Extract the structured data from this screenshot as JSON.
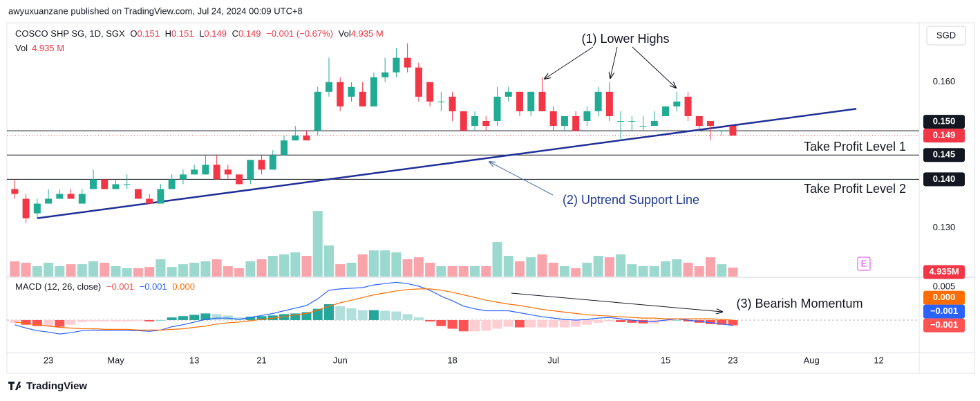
{
  "header": {
    "publisher": "awyuxuanzane published on TradingView.com, Jul 24, 2024 00:09 UTC+8",
    "symbol": "COSCO SHP SG, 1D, SGX",
    "ohlc": [
      {
        "key": "O",
        "value": "0.151"
      },
      {
        "key": "H",
        "value": "0.151"
      },
      {
        "key": "L",
        "value": "0.149"
      },
      {
        "key": "C",
        "value": "0.149"
      }
    ],
    "change": "−0.001 (−0.67%)",
    "vol_key": "Vol",
    "vol_value": "4.935 M",
    "currency": "SGD",
    "events_marker": "E"
  },
  "chart_data": [
    {
      "type": "candlestick",
      "open": [
        0.138,
        0.136,
        0.133,
        0.135,
        0.136,
        0.137,
        0.135,
        0.138,
        0.14,
        0.138,
        0.139,
        0.138,
        0.136,
        0.135,
        0.138,
        0.14,
        0.141,
        0.141,
        0.143,
        0.142,
        0.141,
        0.14,
        0.144,
        0.142,
        0.145,
        0.148,
        0.149,
        0.15,
        0.158,
        0.16,
        0.157,
        0.158,
        0.155,
        0.161,
        0.162,
        0.165,
        0.163,
        0.16,
        0.156,
        0.157,
        0.154,
        0.151,
        0.152,
        0.152,
        0.157,
        0.158,
        0.154,
        0.158,
        0.154,
        0.151,
        0.153,
        0.152,
        0.154,
        0.158,
        0.152,
        0.152,
        0.151,
        0.151,
        0.153,
        0.155,
        0.157,
        0.153,
        0.152,
        0.15,
        0.151
      ],
      "high": [
        0.14,
        0.137,
        0.136,
        0.138,
        0.138,
        0.138,
        0.138,
        0.142,
        0.14,
        0.14,
        0.141,
        0.138,
        0.137,
        0.139,
        0.141,
        0.142,
        0.143,
        0.145,
        0.145,
        0.143,
        0.141,
        0.144,
        0.145,
        0.146,
        0.149,
        0.151,
        0.15,
        0.159,
        0.165,
        0.161,
        0.16,
        0.16,
        0.162,
        0.165,
        0.167,
        0.168,
        0.164,
        0.16,
        0.158,
        0.158,
        0.154,
        0.154,
        0.153,
        0.159,
        0.159,
        0.158,
        0.158,
        0.161,
        0.155,
        0.153,
        0.154,
        0.155,
        0.159,
        0.16,
        0.154,
        0.153,
        0.153,
        0.154,
        0.155,
        0.158,
        0.158,
        0.153,
        0.152,
        0.15,
        0.151
      ],
      "low": [
        0.136,
        0.131,
        0.132,
        0.135,
        0.136,
        0.136,
        0.135,
        0.138,
        0.138,
        0.138,
        0.138,
        0.136,
        0.135,
        0.135,
        0.138,
        0.139,
        0.141,
        0.141,
        0.14,
        0.14,
        0.139,
        0.139,
        0.141,
        0.142,
        0.145,
        0.148,
        0.148,
        0.149,
        0.157,
        0.154,
        0.156,
        0.155,
        0.155,
        0.16,
        0.161,
        0.162,
        0.156,
        0.155,
        0.154,
        0.152,
        0.15,
        0.15,
        0.15,
        0.151,
        0.156,
        0.153,
        0.153,
        0.154,
        0.15,
        0.15,
        0.15,
        0.151,
        0.153,
        0.152,
        0.148,
        0.15,
        0.15,
        0.151,
        0.153,
        0.154,
        0.152,
        0.15,
        0.148,
        0.149,
        0.149
      ],
      "close": [
        0.137,
        0.132,
        0.135,
        0.136,
        0.137,
        0.136,
        0.137,
        0.14,
        0.138,
        0.139,
        0.139,
        0.136,
        0.135,
        0.138,
        0.14,
        0.141,
        0.142,
        0.143,
        0.14,
        0.141,
        0.139,
        0.144,
        0.142,
        0.145,
        0.148,
        0.149,
        0.148,
        0.158,
        0.16,
        0.155,
        0.159,
        0.155,
        0.161,
        0.162,
        0.165,
        0.163,
        0.157,
        0.156,
        0.156,
        0.154,
        0.15,
        0.153,
        0.151,
        0.157,
        0.158,
        0.154,
        0.158,
        0.154,
        0.151,
        0.153,
        0.15,
        0.154,
        0.158,
        0.153,
        0.152,
        0.152,
        0.151,
        0.152,
        0.155,
        0.156,
        0.153,
        0.151,
        0.151,
        0.15,
        0.149
      ],
      "up_color": "#22ab94",
      "down_color": "#f23645",
      "last_value_label": "0.149",
      "xlim": [
        -0.7,
        80.6
      ],
      "xticks": [
        {
          "value": 3,
          "label": "23"
        },
        {
          "value": 9,
          "label": "May"
        },
        {
          "value": 16,
          "label": "13"
        },
        {
          "value": 22,
          "label": "21"
        },
        {
          "value": 29,
          "label": "Jun"
        },
        {
          "value": 39,
          "label": "18"
        },
        {
          "value": 48,
          "label": "Jul"
        },
        {
          "value": 58,
          "label": "15"
        },
        {
          "value": 64,
          "label": "23"
        },
        {
          "value": 71,
          "label": "Aug"
        },
        {
          "value": 77,
          "label": "12"
        }
      ],
      "ylim": [
        0.12,
        0.1712
      ],
      "yticks": [
        {
          "value": 0.16,
          "label": "0.160"
        },
        {
          "value": 0.13,
          "label": "0.130"
        }
      ],
      "hline_color": "#131722",
      "hlines": [
        {
          "value": 0.15,
          "label": "0.150"
        },
        {
          "value": 0.145,
          "label": "0.145"
        },
        {
          "value": 0.14,
          "label": "0.140"
        }
      ],
      "trendline": {
        "x": [
          2,
          75
        ],
        "y": [
          0.132,
          0.1545
        ],
        "color": "#1f2f96"
      },
      "annotations": [
        "(1) Lower Highs",
        "(2) Uptrend Support Line",
        "(3) Bearish Momentum",
        "Take Profit Level 1",
        "Take Profit Level 2"
      ]
    },
    {
      "type": "volume",
      "values": [
        8.4,
        7.6,
        5.7,
        7.6,
        5.7,
        6.8,
        6.8,
        8.4,
        7.6,
        5.7,
        4.6,
        4.6,
        5.3,
        9.5,
        5.3,
        6.8,
        7.6,
        8.4,
        9.5,
        5.7,
        4.6,
        8.4,
        9.5,
        11.4,
        12.2,
        13.3,
        11.4,
        36.1,
        17.1,
        6.8,
        7.6,
        12.2,
        14.4,
        14.4,
        13.3,
        9.5,
        10.6,
        7.6,
        5.7,
        5.7,
        5.7,
        5.7,
        5.7,
        19,
        11.4,
        8.4,
        10.6,
        12.2,
        7.6,
        5.7,
        4.6,
        7.6,
        11.4,
        10.6,
        12.2,
        6.8,
        5.7,
        5.7,
        8.4,
        9.5,
        7.6,
        5.7,
        10.6,
        6.8,
        4.935
      ],
      "last_value_label": "4.935M"
    },
    {
      "type": "macd",
      "title": "MACD (12, 26, close)",
      "histogram": {
        "values": [
          -0.0004,
          -0.0007,
          -0.0009,
          -0.0009,
          -0.001,
          -0.0007,
          -0.0003,
          -0.0002,
          -0.0002,
          -0.0002,
          -0.0002,
          -0.0001,
          -0.0002,
          0,
          0.0004,
          0.0006,
          0.0008,
          0.001,
          0.0009,
          0.0007,
          0.0004,
          0.0005,
          0.0006,
          0.0007,
          0.0009,
          0.001,
          0.0012,
          0.0017,
          0.0024,
          0.0021,
          0.0018,
          0.0015,
          0.0015,
          0.0014,
          0.0013,
          0.0009,
          0.0004,
          -0.0002,
          -0.0009,
          -0.0013,
          -0.0017,
          -0.0017,
          -0.0016,
          -0.0013,
          -0.001,
          -0.0011,
          -0.0011,
          -0.0011,
          -0.0011,
          -0.0011,
          -0.001,
          -0.0007,
          -0.0004,
          -0.0002,
          -0.0003,
          -0.0004,
          -0.0005,
          -0.0005,
          -0.0002,
          0,
          -0.0002,
          -0.0004,
          -0.0006,
          -0.0007,
          -0.0008
        ],
        "colors": [
          "#26a69a",
          "#b2dfdb",
          "#ffcdd2",
          "#ff5252"
        ],
        "value_label": "−0.001"
      },
      "series": [
        {
          "color": "#2962ff",
          "value_label": "−0.001",
          "values": [
            -0.0007,
            -0.0012,
            -0.0016,
            -0.0018,
            -0.0021,
            -0.0019,
            -0.0016,
            -0.0015,
            -0.0016,
            -0.0016,
            -0.0016,
            -0.0016,
            -0.0017,
            -0.0015,
            -0.001,
            -0.0007,
            -0.0003,
            0.0001,
            0.0003,
            0.0003,
            0.0001,
            0.0004,
            0.0007,
            0.001,
            0.0014,
            0.0018,
            0.0022,
            0.0032,
            0.0045,
            0.0047,
            0.0048,
            0.0049,
            0.0053,
            0.0055,
            0.0057,
            0.0055,
            0.0051,
            0.0045,
            0.0036,
            0.0029,
            0.0021,
            0.0017,
            0.0014,
            0.0014,
            0.0014,
            0.0011,
            0.0008,
            0.0005,
            0.0003,
            0.0001,
            0,
            0.0001,
            0.0003,
            0.0004,
            0.0002,
            0,
            -0.0002,
            -0.0002,
            0,
            0.0002,
            0,
            -0.0002,
            -0.0004,
            -0.0006,
            -0.0008
          ]
        },
        {
          "color": "#ff6d00",
          "value_label": "0.000",
          "values": [
            -0.0003,
            -0.0005,
            -0.0007,
            -0.0009,
            -0.0011,
            -0.0012,
            -0.0013,
            -0.0013,
            -0.0014,
            -0.0014,
            -0.0014,
            -0.0015,
            -0.0015,
            -0.0015,
            -0.0014,
            -0.0013,
            -0.0011,
            -0.0009,
            -0.0006,
            -0.0004,
            -0.0003,
            -0.0001,
            0.0001,
            0.0003,
            0.0005,
            0.0008,
            0.001,
            0.0015,
            0.0021,
            0.0026,
            0.003,
            0.0034,
            0.0038,
            0.0041,
            0.0044,
            0.0046,
            0.0047,
            0.0047,
            0.0045,
            0.0042,
            0.0038,
            0.0034,
            0.003,
            0.0027,
            0.0024,
            0.0022,
            0.0019,
            0.0016,
            0.0014,
            0.0012,
            0.001,
            0.0008,
            0.0007,
            0.0006,
            0.0005,
            0.0004,
            0.0003,
            0.0003,
            0.0002,
            0.0002,
            0.0002,
            0.0002,
            0.0002,
            0.0001,
            0
          ]
        }
      ],
      "ylim": [
        -0.0049,
        0.00625
      ],
      "yticks": [
        {
          "value": 0.005,
          "label": "0.005"
        }
      ]
    }
  ],
  "footer": {
    "logo": "TradingView"
  }
}
